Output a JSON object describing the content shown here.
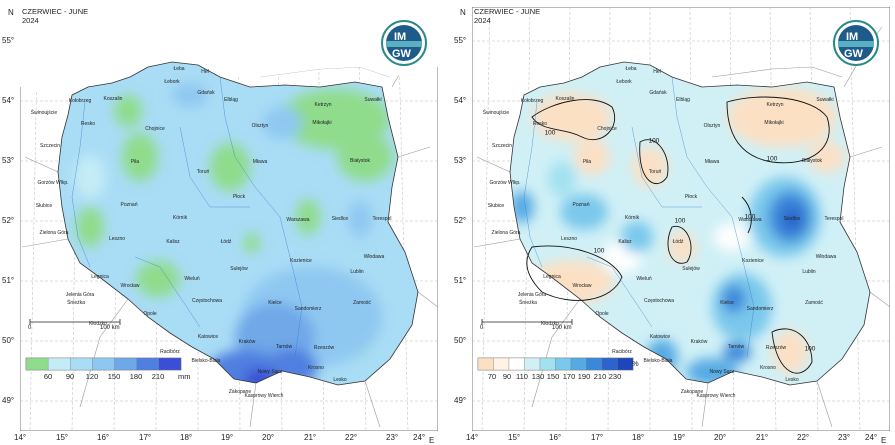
{
  "panels": [
    {
      "id": "precip",
      "header_line1": "CZERWIEC - JUNE",
      "header_line2": "2024",
      "legend": {
        "labels": [
          "60",
          "90",
          "120",
          "150",
          "180",
          "210"
        ],
        "unit": "mm",
        "colors": [
          "#8fdc8c",
          "#c4ecf6",
          "#a9dcf5",
          "#8ec8f1",
          "#6fa8e8",
          "#4f7fe0",
          "#3b4ed6"
        ]
      },
      "scale_zero": "0",
      "scale_label": "100 km",
      "isoline_labels": []
    },
    {
      "id": "percent",
      "header_line1": "CZERWIEC - JUNE",
      "header_line2": "2024",
      "legend": {
        "labels": [
          "70",
          "90",
          "110",
          "130",
          "150",
          "170",
          "190",
          "210",
          "230"
        ],
        "unit": "%",
        "colors": [
          "#fbe0c4",
          "#fff3e6",
          "#ffffff",
          "#d0f0f6",
          "#a3e1f0",
          "#7ac8ec",
          "#56aae4",
          "#3a88da",
          "#2a64cc",
          "#1f46b8"
        ]
      },
      "scale_zero": "0",
      "scale_label": "100 km",
      "isoline_labels": [
        "100",
        "100",
        "100",
        "100",
        "100",
        "100",
        "100"
      ]
    }
  ],
  "latitudes": [
    "55°",
    "54°",
    "53°",
    "52°",
    "51°",
    "50°",
    "49°"
  ],
  "longitudes": [
    "14°",
    "15°",
    "16°",
    "17°",
    "18°",
    "19°",
    "20°",
    "21°",
    "22°",
    "23°",
    "24°"
  ],
  "north_label": "N",
  "east_label": "E",
  "logo_text": [
    "IM",
    "GW"
  ],
  "cities": [
    "Łeba",
    "Hel",
    "Łebork",
    "Gdańsk",
    "Kołobrzeg",
    "Koszalin",
    "Elbląg",
    "Świnoujście",
    "Resko",
    "Ketrzyn",
    "Suwałki",
    "Chojnice",
    "Olsztyn",
    "Mikołajki",
    "Szczecin",
    "Piła",
    "Toruń",
    "Mława",
    "Białystok",
    "Gorzów Wlkp.",
    "Płock",
    "Poznań",
    "Słubice",
    "Kórnik",
    "Warszawa",
    "Siedlce",
    "Terespol",
    "Zielona Góra",
    "Kalisz",
    "Łódź",
    "Leszno",
    "Sulejów",
    "Włodawa",
    "Legnica",
    "Wieluń",
    "Kozienice",
    "Lublin",
    "Wrocław",
    "Jelenia Góra",
    "Śnieżka",
    "Częstochowa",
    "Kielce",
    "Sandomierz",
    "Zamość",
    "Kłodzko",
    "Opole",
    "Katowice",
    "Racibórz",
    "Kraków",
    "Tarnów",
    "Rzeszów",
    "Bielsko-Biała",
    "Nowy Sącz",
    "Krosno",
    "Lesko",
    "Zakopane",
    "Kasprowy Wierch"
  ]
}
